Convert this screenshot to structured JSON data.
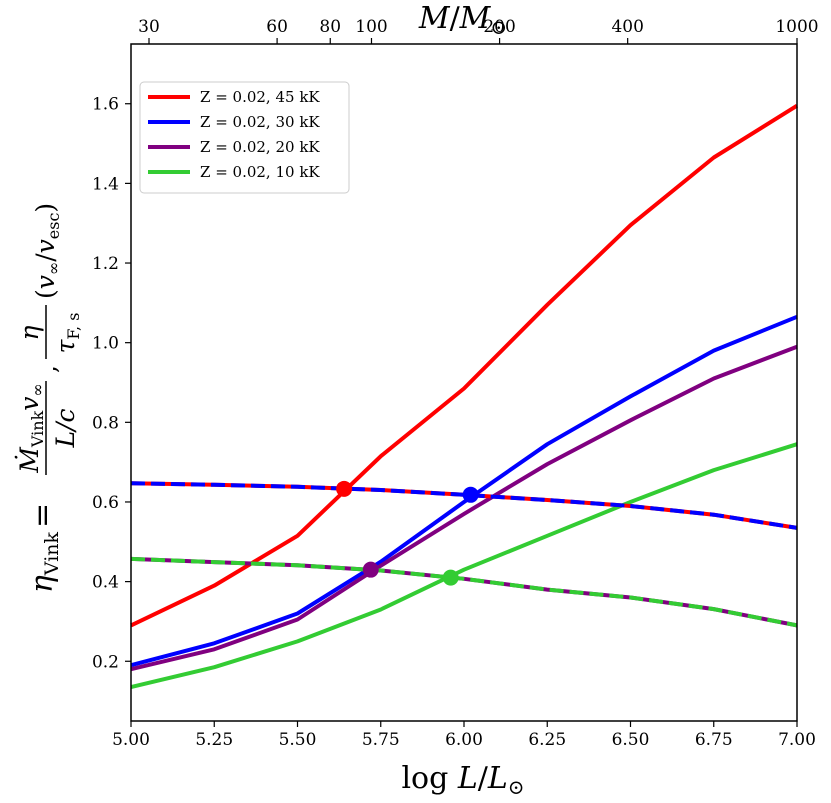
{
  "chart_data": {
    "type": "line",
    "xlim": [
      5.0,
      7.0
    ],
    "ylim": [
      0.05,
      1.75
    ],
    "x_ticks": [
      "5.00",
      "5.25",
      "5.50",
      "5.75",
      "6.00",
      "6.25",
      "6.50",
      "6.75",
      "7.00"
    ],
    "y_ticks": [
      "0.2",
      "0.4",
      "0.6",
      "0.8",
      "1.0",
      "1.2",
      "1.4",
      "1.6"
    ],
    "top_ticks": [
      "30",
      "60",
      "80",
      "100",
      "200",
      "400",
      "1000"
    ],
    "top_tick_masses": [
      30,
      60,
      80,
      100,
      200,
      400,
      1000
    ],
    "xlabel": "log L/L⊙",
    "top_label": "M/M⊙",
    "ylabel": "ηVink = ṀVink v∞ / (L/c) ,  η / τF,s (v∞/vesc)",
    "series": [
      {
        "name": "Z = 0.02, 45 kK",
        "color": "#ff0000",
        "x": [
          5.0,
          5.25,
          5.5,
          5.75,
          6.0,
          6.25,
          6.5,
          6.75,
          7.0
        ],
        "y": [
          0.29,
          0.39,
          0.515,
          0.715,
          0.885,
          1.095,
          1.295,
          1.465,
          1.595
        ],
        "dashed_x": [
          5.0,
          5.25,
          5.5,
          5.75,
          6.0,
          6.25,
          6.5,
          6.75,
          7.0
        ],
        "dashed_y": [
          0.647,
          0.643,
          0.638,
          0.63,
          0.618,
          0.605,
          0.59,
          0.568,
          0.535
        ],
        "intersection": [
          5.64,
          0.633
        ]
      },
      {
        "name": "Z = 0.02, 30 kK",
        "color": "#0000ff",
        "x": [
          5.0,
          5.25,
          5.5,
          5.75,
          6.0,
          6.25,
          6.5,
          6.75,
          7.0
        ],
        "y": [
          0.19,
          0.245,
          0.32,
          0.45,
          0.6,
          0.745,
          0.865,
          0.98,
          1.065
        ],
        "dashed_x": [
          5.0,
          5.25,
          5.5,
          5.75,
          6.0,
          6.25,
          6.5,
          6.75,
          7.0
        ],
        "dashed_y": [
          0.647,
          0.643,
          0.638,
          0.63,
          0.618,
          0.605,
          0.59,
          0.568,
          0.535
        ],
        "intersection": [
          6.02,
          0.618
        ]
      },
      {
        "name": "Z = 0.02, 20 kK",
        "color": "#800080",
        "x": [
          5.0,
          5.25,
          5.5,
          5.75,
          6.0,
          6.25,
          6.5,
          6.75,
          7.0
        ],
        "y": [
          0.18,
          0.23,
          0.305,
          0.44,
          0.57,
          0.695,
          0.805,
          0.91,
          0.99
        ],
        "dashed_x": [
          5.0,
          5.25,
          5.5,
          5.75,
          6.0,
          6.25,
          6.5,
          6.75,
          7.0
        ],
        "dashed_y": [
          0.457,
          0.449,
          0.441,
          0.428,
          0.407,
          0.38,
          0.36,
          0.331,
          0.29
        ],
        "intersection": [
          5.72,
          0.43
        ]
      },
      {
        "name": "Z = 0.02, 10 kK",
        "color": "#33cc33",
        "x": [
          5.0,
          5.25,
          5.5,
          5.75,
          6.0,
          6.25,
          6.5,
          6.75,
          7.0
        ],
        "y": [
          0.135,
          0.185,
          0.25,
          0.33,
          0.43,
          0.515,
          0.6,
          0.68,
          0.745
        ],
        "dashed_x": [
          5.0,
          5.25,
          5.5,
          5.75,
          6.0,
          6.25,
          6.5,
          6.75,
          7.0
        ],
        "dashed_y": [
          0.457,
          0.449,
          0.441,
          0.428,
          0.407,
          0.38,
          0.36,
          0.331,
          0.29
        ],
        "intersection": [
          5.96,
          0.41
        ]
      }
    ],
    "legend_location": "top-left"
  }
}
